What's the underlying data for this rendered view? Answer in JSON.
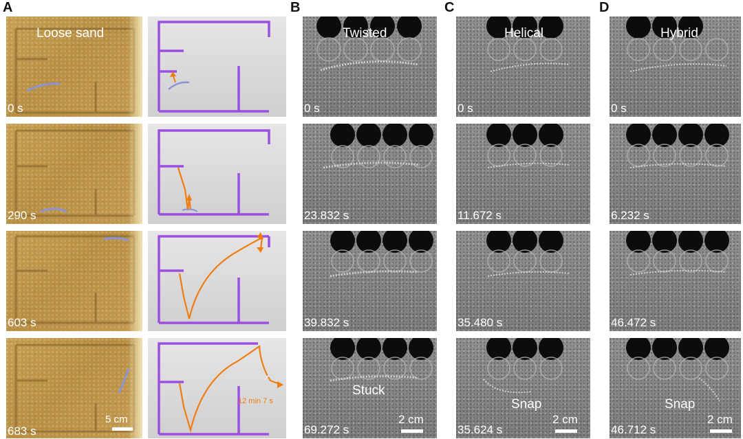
{
  "panel_letters": [
    "A",
    "B",
    "C",
    "D"
  ],
  "column_a": {
    "title": "Loose sand",
    "times": [
      "0 s",
      "290 s",
      "603 s",
      "683 s"
    ],
    "scale_label": "5 cm",
    "final_annotation": "12 min 7 s"
  },
  "column_b": {
    "title": "Twisted",
    "times": [
      "0 s",
      "23.832 s",
      "39.832 s",
      "69.272 s"
    ],
    "outcome": "Stuck",
    "scale_label": "2 cm"
  },
  "column_c": {
    "title": "Helical",
    "times": [
      "0 s",
      "11.672 s",
      "35.480 s",
      "35.624 s"
    ],
    "outcome": "Snap",
    "scale_label": "2 cm"
  },
  "column_d": {
    "title": "Hybrid",
    "times": [
      "0 s",
      "6.232 s",
      "46.472 s",
      "46.712 s"
    ],
    "outcome": "Snap",
    "scale_label": "2 cm"
  },
  "colors": {
    "wall_purple": "#9b4fe0",
    "trajectory_orange": "#f07d12",
    "robot_blue": "#8b93d6"
  }
}
